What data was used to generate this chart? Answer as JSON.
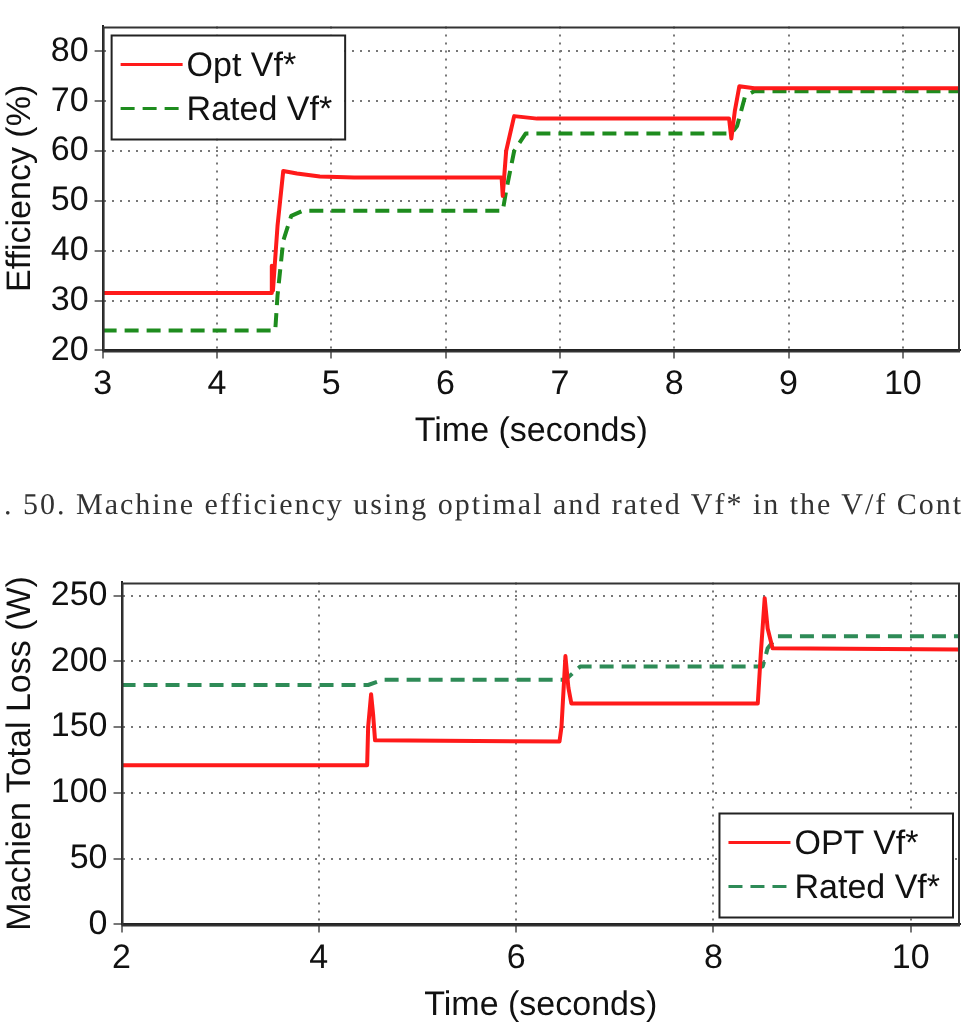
{
  "chart_data": [
    {
      "type": "line",
      "xlabel": "Time (seconds)",
      "ylabel": "Efficiency (%)",
      "xlim": [
        3,
        10.5
      ],
      "ylim": [
        20,
        85
      ],
      "xticks": [
        3,
        4,
        5,
        6,
        7,
        8,
        9,
        10
      ],
      "yticks": [
        20,
        30,
        40,
        50,
        60,
        70,
        80
      ],
      "grid": true,
      "legend": "top left",
      "marker": "none",
      "annotations": [
        ". 50. Machine efficiency using optimal and rated Vf* in the V/f Cont"
      ],
      "series": [
        {
          "name": "Opt Vf*",
          "color": "#ff1a1a",
          "line_style": "solid",
          "x": [
            3,
            4.47,
            4.48,
            4.49,
            4.53,
            4.58,
            4.7,
            4.9,
            5.2,
            6.49,
            6.5,
            6.53,
            6.6,
            6.8,
            8.48,
            8.5,
            8.53,
            8.57,
            8.7,
            10.5
          ],
          "values": [
            31.5,
            31.5,
            37,
            32,
            45,
            56,
            55.5,
            54.9,
            54.7,
            54.7,
            51,
            60,
            67,
            66.5,
            66.5,
            62.5,
            68,
            73,
            72.6,
            72.6
          ]
        },
        {
          "name": "Rated Vf*",
          "color": "#1e8c1e",
          "line_style": "dashed",
          "x": [
            3,
            4.51,
            4.53,
            4.58,
            4.65,
            4.75,
            6.5,
            6.53,
            6.6,
            6.7,
            8.5,
            8.55,
            8.62,
            8.7,
            10.5
          ],
          "values": [
            24,
            24,
            31,
            42,
            47,
            48,
            48,
            52,
            60,
            63.5,
            63.5,
            65,
            71,
            72,
            72
          ]
        }
      ]
    },
    {
      "type": "line",
      "xlabel": "Time (seconds)",
      "ylabel": "Machien Total Loss (W)",
      "xlim": [
        2,
        10.5
      ],
      "ylim": [
        0,
        260
      ],
      "xticks": [
        2,
        4,
        6,
        8,
        10
      ],
      "yticks": [
        0,
        50,
        100,
        150,
        200,
        250
      ],
      "grid": true,
      "legend": "bottom right",
      "marker": "none",
      "series": [
        {
          "name": "OPT Vf*",
          "color": "#ff1a1a",
          "line_style": "solid",
          "x": [
            2,
            4.49,
            4.5,
            4.53,
            4.55,
            4.57,
            6.44,
            6.46,
            6.5,
            6.53,
            6.56,
            8.45,
            8.48,
            8.52,
            8.55,
            8.6,
            10.5
          ],
          "values": [
            121,
            121,
            150,
            175,
            160,
            140,
            139,
            150,
            204,
            180,
            168,
            168,
            205,
            248,
            225,
            210,
            209
          ]
        },
        {
          "name": "Rated Vf*",
          "color": "#2e8b57",
          "line_style": "dashed",
          "x": [
            2,
            4.5,
            4.65,
            6.5,
            6.65,
            8.5,
            8.55,
            8.65,
            10.5
          ],
          "values": [
            182,
            182,
            186,
            186,
            196,
            196,
            210,
            219,
            219
          ]
        }
      ]
    }
  ]
}
